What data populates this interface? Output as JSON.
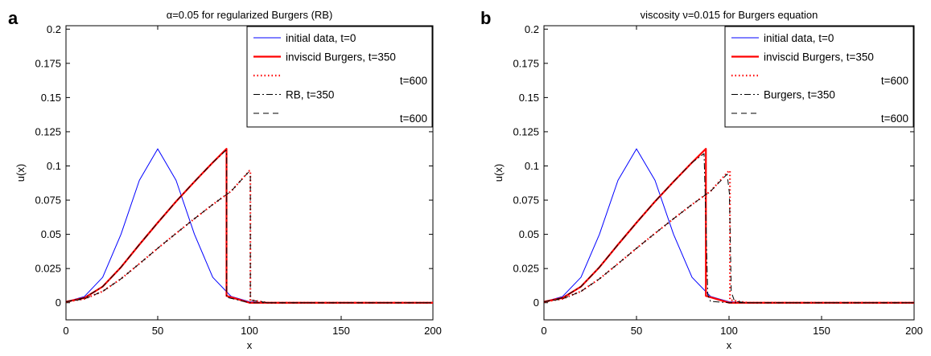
{
  "chart_data": [
    {
      "type": "line",
      "panel_label": "a",
      "title": "α=0.05 for regularized Burgers (RB)",
      "xlabel": "x",
      "ylabel": "u(x)",
      "xlim": [
        0,
        200
      ],
      "ylim": [
        -0.0125,
        0.2025
      ],
      "xticks": [
        0,
        50,
        100,
        150,
        200
      ],
      "yticks": [
        0,
        0.025,
        0.05,
        0.075,
        0.1,
        0.125,
        0.15,
        0.175,
        0.2
      ],
      "ytick_labels": [
        "0",
        "0.025",
        "0.05",
        "0.075",
        "0.1",
        "0.125",
        "0.15",
        "0.175",
        "0.2"
      ],
      "legend_position": "top-right",
      "legend": [
        "initial data, t=0",
        "inviscid Burgers, t=350",
        "t=600",
        "RB, t=350",
        "t=600"
      ],
      "series": [
        {
          "name": "initial data, t=0",
          "color": "#0000ff",
          "style": "solid",
          "x": [
            0,
            10,
            20,
            30,
            40,
            50,
            60,
            70,
            80,
            90,
            100,
            110,
            120,
            200
          ],
          "y": [
            0.0007,
            0.0045,
            0.0186,
            0.0501,
            0.0895,
            0.1125,
            0.0895,
            0.0501,
            0.0186,
            0.0046,
            0.0007,
            0.0001,
            0,
            0
          ]
        },
        {
          "name": "inviscid Burgers, t=350",
          "color": "#ff0000",
          "style": "solid",
          "x": [
            0,
            10,
            20,
            30,
            40,
            50,
            60,
            70,
            80,
            87.5,
            87.5,
            100,
            200
          ],
          "y": [
            0.0007,
            0.0035,
            0.0118,
            0.026,
            0.0425,
            0.0585,
            0.074,
            0.0885,
            0.1025,
            0.1125,
            0.005,
            0,
            0
          ]
        },
        {
          "name": "t=600",
          "color": "#ff0000",
          "style": "dotted",
          "x": [
            0,
            10,
            20,
            30,
            40,
            50,
            60,
            70,
            80,
            90,
            100,
            100.5,
            100.5,
            110,
            200
          ],
          "y": [
            0.0007,
            0.0028,
            0.0083,
            0.0175,
            0.0285,
            0.0398,
            0.0507,
            0.0614,
            0.0718,
            0.0815,
            0.0965,
            0.0965,
            0.002,
            0,
            0
          ]
        },
        {
          "name": "RB, t=350",
          "color": "#000000",
          "style": "dashdot",
          "x": [
            0,
            10,
            20,
            30,
            40,
            50,
            60,
            70,
            80,
            87.3,
            87.6,
            87.6,
            100,
            200
          ],
          "y": [
            0.0007,
            0.0035,
            0.0118,
            0.026,
            0.0425,
            0.0585,
            0.074,
            0.0885,
            0.1025,
            0.1115,
            0.108,
            0.004,
            0,
            0
          ]
        },
        {
          "name": "t=600",
          "color": "#000000",
          "style": "dashed",
          "x": [
            0,
            10,
            20,
            30,
            40,
            50,
            60,
            70,
            80,
            90,
            99.5,
            100.5,
            100.5,
            110,
            200
          ],
          "y": [
            0.0007,
            0.0028,
            0.0083,
            0.0175,
            0.0285,
            0.0398,
            0.0507,
            0.0614,
            0.0718,
            0.0815,
            0.0955,
            0.094,
            0.002,
            0,
            0
          ]
        }
      ]
    },
    {
      "type": "line",
      "panel_label": "b",
      "title": "viscosity ν=0.015 for Burgers equation",
      "xlabel": "x",
      "ylabel": "u(x)",
      "xlim": [
        0,
        200
      ],
      "ylim": [
        -0.0125,
        0.2025
      ],
      "xticks": [
        0,
        50,
        100,
        150,
        200
      ],
      "yticks": [
        0,
        0.025,
        0.05,
        0.075,
        0.1,
        0.125,
        0.15,
        0.175,
        0.2
      ],
      "ytick_labels": [
        "0",
        "0.025",
        "0.05",
        "0.075",
        "0.1",
        "0.125",
        "0.15",
        "0.175",
        "0.2"
      ],
      "legend_position": "top-right",
      "legend": [
        "initial data, t=0",
        "inviscid Burgers, t=350",
        "t=600",
        "Burgers, t=350",
        "t=600"
      ],
      "series": [
        {
          "name": "initial data, t=0",
          "color": "#0000ff",
          "style": "solid",
          "x": [
            0,
            10,
            20,
            30,
            40,
            50,
            60,
            70,
            80,
            90,
            100,
            110,
            120,
            200
          ],
          "y": [
            0.0007,
            0.0045,
            0.0186,
            0.0501,
            0.0895,
            0.1125,
            0.0895,
            0.0501,
            0.0186,
            0.0046,
            0.0007,
            0.0001,
            0,
            0
          ]
        },
        {
          "name": "inviscid Burgers, t=350",
          "color": "#ff0000",
          "style": "solid",
          "x": [
            0,
            10,
            20,
            30,
            40,
            50,
            60,
            70,
            80,
            87.5,
            87.5,
            100,
            200
          ],
          "y": [
            0.0007,
            0.0035,
            0.0118,
            0.026,
            0.0425,
            0.0585,
            0.074,
            0.0885,
            0.1025,
            0.1125,
            0.005,
            0,
            0
          ]
        },
        {
          "name": "t=600",
          "color": "#ff0000",
          "style": "dotted",
          "x": [
            0,
            10,
            20,
            30,
            40,
            50,
            60,
            70,
            80,
            90,
            100,
            100.5,
            100.5,
            110,
            200
          ],
          "y": [
            0.0007,
            0.0028,
            0.0083,
            0.0175,
            0.0285,
            0.0398,
            0.0507,
            0.0614,
            0.0718,
            0.0815,
            0.0965,
            0.0965,
            0.002,
            0,
            0
          ]
        },
        {
          "name": "Burgers, t=350",
          "color": "#000000",
          "style": "dashdot",
          "x": [
            0,
            10,
            20,
            30,
            40,
            50,
            60,
            70,
            80,
            86.5,
            87.5,
            88.5,
            90,
            100,
            200
          ],
          "y": [
            0.0007,
            0.0035,
            0.0118,
            0.026,
            0.0425,
            0.0585,
            0.074,
            0.0885,
            0.1025,
            0.109,
            0.06,
            0.006,
            0.001,
            0,
            0
          ]
        },
        {
          "name": "t=600",
          "color": "#000000",
          "style": "dashed",
          "x": [
            0,
            10,
            20,
            30,
            40,
            50,
            60,
            70,
            80,
            90,
            99,
            100.2,
            101.2,
            103,
            110,
            200
          ],
          "y": [
            0.0007,
            0.0028,
            0.0083,
            0.0175,
            0.0285,
            0.0398,
            0.0507,
            0.0614,
            0.0718,
            0.0815,
            0.094,
            0.08,
            0.008,
            0.001,
            0,
            0
          ]
        }
      ]
    }
  ]
}
